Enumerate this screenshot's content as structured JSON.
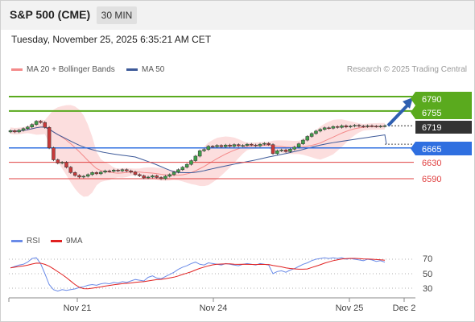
{
  "header": {
    "title": "S&P 500 (CME)",
    "interval": "30 MIN"
  },
  "timestamp": "Tuesday, November 25, 2025 6:35:21 AM CET",
  "legend": {
    "ma20": {
      "label": "MA 20 + Bollinger Bands",
      "color": "#f48a8a"
    },
    "ma50": {
      "label": "MA 50",
      "color": "#3d5a99"
    }
  },
  "credit": "Research © 2025 Trading Central",
  "levels": {
    "r2": {
      "label": "6790",
      "color": "#5aaa1e"
    },
    "r1": {
      "label": "6755",
      "color": "#5aaa1e"
    },
    "last": {
      "label": "6719",
      "color": "#333333"
    },
    "pivot": {
      "label": "6665",
      "color": "#2f6fe0"
    },
    "s1": {
      "label": "6630",
      "color": "#e04040"
    },
    "s2": {
      "label": "6590",
      "color": "#e04040"
    }
  },
  "rsi_legend": {
    "rsi": {
      "label": "RSI",
      "color": "#6a8be8"
    },
    "ma9": {
      "label": "9MA",
      "color": "#e02020"
    }
  },
  "rsi_ticks": [
    "70",
    "50",
    "30"
  ],
  "x_labels": [
    "Nov 21",
    "Nov 24",
    "Nov 25",
    "Dec 2"
  ],
  "chart_data": {
    "type": "candlestick",
    "y_unit": "price",
    "ylim": [
      6550,
      6810
    ],
    "close_series": [
      6707,
      6704,
      6708,
      6712,
      6716,
      6722,
      6730,
      6727,
      6715,
      6665,
      6636,
      6628,
      6630,
      6618,
      6605,
      6598,
      6594,
      6596,
      6600,
      6605,
      6602,
      6606,
      6609,
      6608,
      6611,
      6609,
      6612,
      6609,
      6606,
      6600,
      6597,
      6592,
      6594,
      6597,
      6593,
      6590,
      6596,
      6600,
      6606,
      6612,
      6618,
      6625,
      6634,
      6645,
      6658,
      6661,
      6669,
      6668,
      6671,
      6668,
      6672,
      6669,
      6673,
      6670,
      6671,
      6674,
      6672,
      6670,
      6674,
      6676,
      6673,
      6651,
      6658,
      6660,
      6656,
      6662,
      6667,
      6675,
      6684,
      6693,
      6700,
      6706,
      6710,
      6714,
      6713,
      6717,
      6715,
      6719,
      6716,
      6718,
      6720,
      6718,
      6717,
      6719,
      6718,
      6717,
      6718,
      6719
    ],
    "rsi_series": [
      58,
      60,
      62,
      63,
      66,
      71,
      72,
      64,
      50,
      35,
      28,
      26,
      28,
      27,
      28,
      29,
      31,
      32,
      34,
      35,
      34,
      36,
      37,
      36,
      38,
      37,
      39,
      38,
      40,
      42,
      41,
      40,
      45,
      47,
      44,
      43,
      46,
      49,
      52,
      56,
      59,
      61,
      64,
      66,
      63,
      62,
      65,
      64,
      63,
      62,
      64,
      63,
      62,
      61,
      63,
      64,
      63,
      62,
      64,
      63,
      62,
      50,
      53,
      54,
      52,
      55,
      57,
      60,
      63,
      65,
      68,
      70,
      71,
      72,
      71,
      72,
      71,
      72,
      70,
      71,
      70,
      69,
      68,
      70,
      69,
      67,
      68,
      66
    ],
    "rsi_ticks": [
      70,
      50,
      30
    ]
  }
}
